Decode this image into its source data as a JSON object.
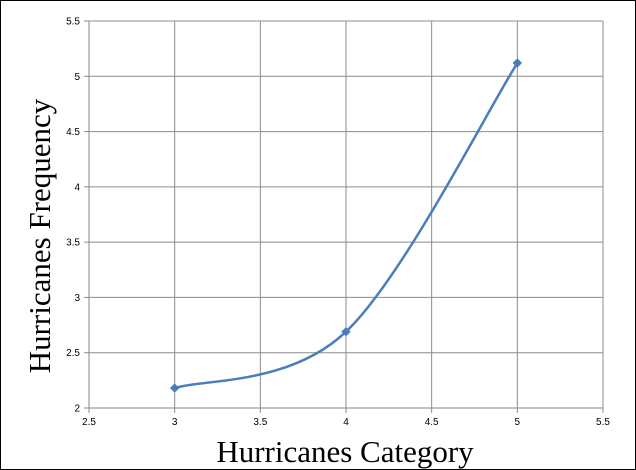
{
  "chart_data": {
    "type": "line",
    "smooth": true,
    "title": "",
    "xlabel": "Hurricanes Category",
    "ylabel": "Hurricanes Frequency",
    "xlim": [
      2.5,
      5.5
    ],
    "ylim": [
      2,
      5.5
    ],
    "x_ticks": [
      "2.5",
      "3",
      "3.5",
      "4",
      "4.5",
      "5",
      "5.5"
    ],
    "y_ticks": [
      "2",
      "2.5",
      "3",
      "3.5",
      "4",
      "4.5",
      "5",
      "5.5"
    ],
    "grid": true,
    "legend": "none",
    "series": [
      {
        "color": "#4a7ebb",
        "marker": "diamond",
        "x": [
          3,
          4,
          5
        ],
        "y": [
          2.18,
          2.69,
          5.12
        ]
      }
    ]
  }
}
